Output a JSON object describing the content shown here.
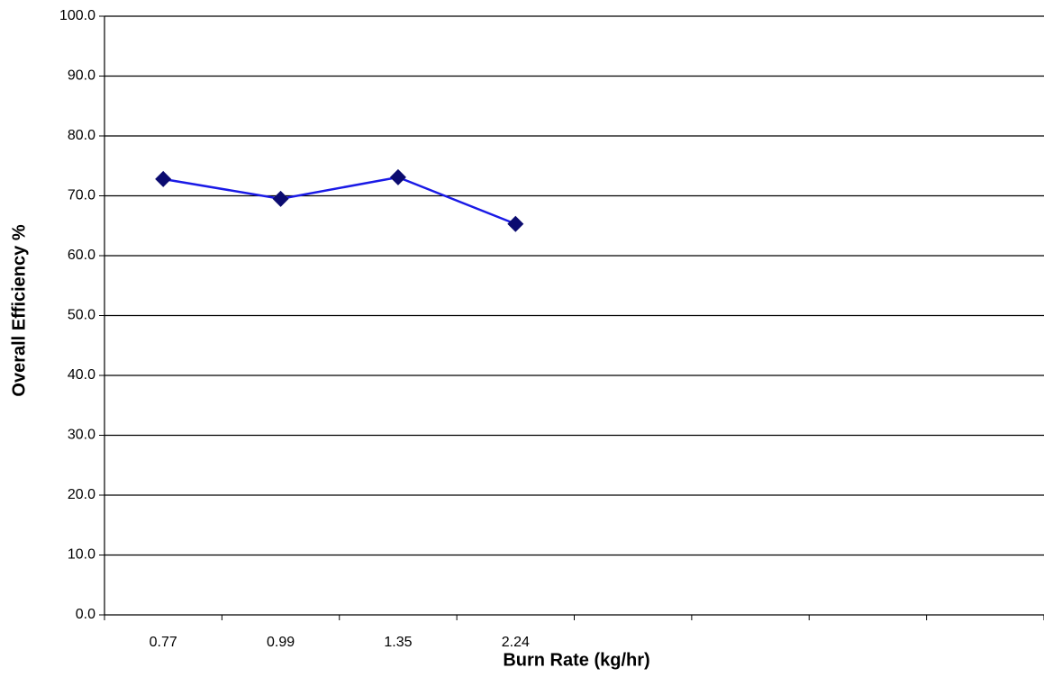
{
  "chart_data": {
    "type": "line",
    "x_label": "Burn Rate (kg/hr)",
    "y_label": "Overall Efficiency %",
    "categories": [
      "0.77",
      "0.99",
      "1.35",
      "2.24",
      null,
      null,
      null,
      null
    ],
    "values": [
      72.8,
      69.5,
      73.1,
      65.3,
      null,
      null,
      null,
      null
    ],
    "color": "#1a1ae6",
    "marker_color": "#0b0b70",
    "ylim": [
      0,
      100
    ],
    "yticks": [
      {
        "value": 0,
        "label": "0.0"
      },
      {
        "value": 10,
        "label": "10.0"
      },
      {
        "value": 20,
        "label": "20.0"
      },
      {
        "value": 30,
        "label": "30.0"
      },
      {
        "value": 40,
        "label": "40.0"
      },
      {
        "value": 50,
        "label": "50.0"
      },
      {
        "value": 60,
        "label": "60.0"
      },
      {
        "value": 70,
        "label": "70.0"
      },
      {
        "value": 80,
        "label": "80.0"
      },
      {
        "value": 90,
        "label": "90.0"
      },
      {
        "value": 100,
        "label": "100.0"
      }
    ],
    "grid": true
  }
}
